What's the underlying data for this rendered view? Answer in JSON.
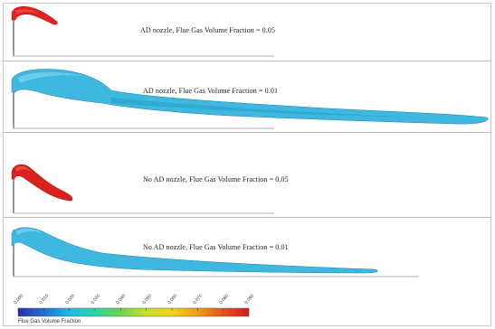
{
  "panels": [
    {
      "caption": "AD nozzle, Flue Gas Volume Fraction = 0.05",
      "iso_value": 0.05,
      "color": "#e0231f"
    },
    {
      "caption": "AD nozzle, Flue Gas Volume Fraction = 0.01",
      "iso_value": 0.01,
      "color": "#3fb8e0"
    },
    {
      "caption": "No AD nozzle, Flue Gas Volume Fraction = 0.05",
      "iso_value": 0.05,
      "color": "#e0231f"
    },
    {
      "caption": "No AD nozzle, Flue Gas Volume Fraction = 0.01",
      "iso_value": 0.01,
      "color": "#3fb8e0"
    }
  ],
  "colorbar": {
    "title": "Flue Gas Volume Fraction",
    "ticks": [
      "0.000",
      "0.010",
      "0.020",
      "0.030",
      "0.040",
      "0.050",
      "0.060",
      "0.070",
      "0.080",
      "0.090"
    ],
    "colors": [
      "#2b2ea8",
      "#1f6fd1",
      "#21b8e8",
      "#2cd3a8",
      "#6cd548",
      "#c8e02c",
      "#f2d21e",
      "#f29b1a",
      "#e2521a",
      "#d31818"
    ]
  }
}
